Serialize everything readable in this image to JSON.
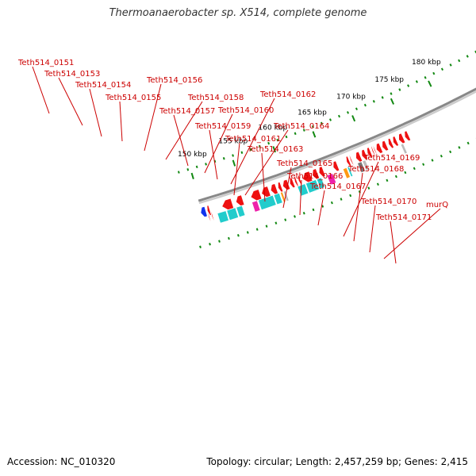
{
  "title": "Thermoanaerobacter sp. X514, complete genome",
  "footer": {
    "accession": "Accession: NC_010320",
    "topology": "Topology: circular; Length: 2,457,259 bp; Genes: 2,415"
  },
  "colors": {
    "cds_red": "#ee1111",
    "cyan": "#22cccc",
    "magenta": "#ee22aa",
    "orange": "#ff9911",
    "gray": "#bbbbbb",
    "dark_gray": "#777777",
    "blue": "#1133ee",
    "backbone": "#888888",
    "label": "#cc0000",
    "dot_green": "#118811"
  },
  "scale_labels": [
    "150 kbp",
    "155 kbp",
    "160 kbp",
    "165 kbp",
    "170 kbp",
    "175 kbp",
    "180 kbp"
  ],
  "gene_labels": [
    "Teth514_0151",
    "Teth514_0153",
    "Teth514_0154",
    "Teth514_0155",
    "Teth514_0156",
    "Teth514_0158",
    "Teth514_0157",
    "Teth514_0160",
    "Teth514_0162",
    "Teth514_0159",
    "Teth514_0164",
    "Teth514_0161",
    "Teth514_0163",
    "Teth514_0165",
    "Teth514_0166",
    "Teth514_0167",
    "Teth514_0169",
    "Teth514_0168",
    "Teth514_0170",
    "murQ",
    "Teth514_0171"
  ]
}
